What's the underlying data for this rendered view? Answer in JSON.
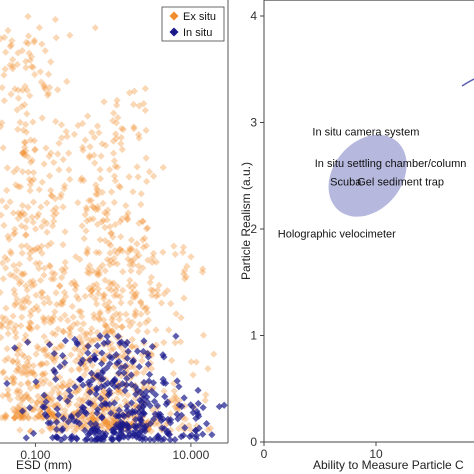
{
  "chart_data": [
    {
      "type": "scatter",
      "xlabel": "ESD (mm)",
      "ylabel": "",
      "x_scale": "log",
      "xlim": [
        0.035,
        30
      ],
      "x_ticks": [
        {
          "value": 0.1,
          "label": "0.100"
        },
        {
          "value": 10,
          "label": "10.000"
        }
      ],
      "y_note": "vertical density of points; y axis tick labels are not visible",
      "legend": {
        "placement": "top-right",
        "entries": [
          {
            "name": "Ex situ",
            "color": "#f08c2c",
            "marker": "diamond"
          },
          {
            "name": "In situ",
            "color": "#1a1a8c",
            "marker": "diamond"
          }
        ]
      },
      "series": [
        {
          "name": "Ex situ",
          "color": "#f08c2c",
          "clusters": [
            {
              "x_center": 0.07,
              "x_spread": 0.35,
              "y_min": 0.05,
              "y_max": 0.98,
              "count": 320
            },
            {
              "x_center": 0.09,
              "x_spread": 0.25,
              "y_min": 0.05,
              "y_max": 0.92,
              "count": 220
            },
            {
              "x_center": 0.6,
              "x_spread": 0.25,
              "y_min": 0.03,
              "y_max": 0.73,
              "count": 300
            },
            {
              "x_center": 1.5,
              "x_spread": 0.2,
              "y_min": 0.03,
              "y_max": 0.81,
              "count": 180
            },
            {
              "x_center": 3.5,
              "x_spread": 0.35,
              "y_min": 0.02,
              "y_max": 0.47,
              "count": 160
            },
            {
              "x_center": 0.3,
              "x_spread": 0.35,
              "y_min": 0.02,
              "y_max": 0.45,
              "count": 160
            }
          ]
        },
        {
          "name": "In situ",
          "color": "#1a1a8c",
          "clusters": [
            {
              "x_center": 0.8,
              "x_spread": 0.45,
              "y_min": 0.0,
              "y_max": 0.24,
              "count": 260
            },
            {
              "x_center": 3.0,
              "x_spread": 0.35,
              "y_min": 0.0,
              "y_max": 0.14,
              "count": 80
            },
            {
              "x_center": 12,
              "x_spread": 0.15,
              "y_min": 0.01,
              "y_max": 0.09,
              "count": 14
            }
          ]
        }
      ]
    },
    {
      "type": "scatter",
      "xlabel": "Ability to Measure Particle C",
      "ylabel": "Particle Realism (a.u.)",
      "xlim": [
        0,
        20
      ],
      "ylim": [
        0,
        4
      ],
      "x_ticks": [
        0,
        10
      ],
      "y_ticks": [
        0,
        1,
        2,
        3,
        4
      ],
      "ellipses": [
        {
          "cx": 9.25,
          "cy": 2.5,
          "rx": 1.55,
          "ry": 1.0,
          "angle_deg": -50,
          "color": "#a9acd8"
        }
      ],
      "annotations": [
        {
          "text": "In situ camera system",
          "x": 9.1,
          "y": 2.88
        },
        {
          "text": "In situ settling chamber/column",
          "x": 11.3,
          "y": 2.58
        },
        {
          "text": "Scuba",
          "x": 7.3,
          "y": 2.41
        },
        {
          "text": "Gel sediment trap",
          "x": 12.2,
          "y": 2.41
        },
        {
          "text": "Holographic velocimeter",
          "x": 6.5,
          "y": 1.92
        }
      ]
    }
  ]
}
